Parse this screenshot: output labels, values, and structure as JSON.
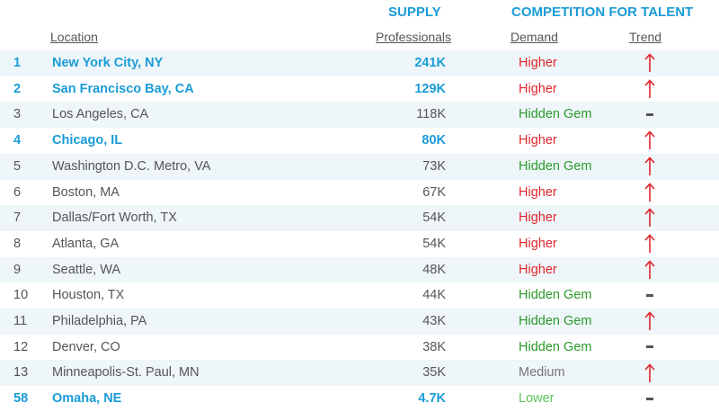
{
  "headers": {
    "supply": "SUPPLY",
    "competition": "COMPETITION FOR TALENT",
    "location": "Location",
    "professionals": "Professionals",
    "demand": "Demand",
    "trend": "Trend"
  },
  "colors": {
    "accent_blue": "#1a9bd7",
    "higher_red": "#e0262c",
    "hidden_gem_green": "#2a9a2a",
    "lower_green": "#5cc15c",
    "medium_gray": "#777777",
    "row_shade": "#eef6f9"
  },
  "rows": [
    {
      "rank": "1",
      "location": "New York City, NY",
      "professionals": "241K",
      "demand": "Higher",
      "trend": "up-arrow-icon",
      "highlight": true,
      "shaded": true
    },
    {
      "rank": "2",
      "location": "San Francisco Bay, CA",
      "professionals": "129K",
      "demand": "Higher",
      "trend": "up-arrow-icon",
      "highlight": true,
      "shaded": false
    },
    {
      "rank": "3",
      "location": "Los Angeles, CA",
      "professionals": "118K",
      "demand": "Hidden Gem",
      "trend": "dash-icon",
      "highlight": false,
      "shaded": true
    },
    {
      "rank": "4",
      "location": "Chicago, IL",
      "professionals": "80K",
      "demand": "Higher",
      "trend": "up-arrow-icon",
      "highlight": true,
      "shaded": false
    },
    {
      "rank": "5",
      "location": "Washington D.C. Metro, VA",
      "professionals": "73K",
      "demand": "Hidden Gem",
      "trend": "up-arrow-icon",
      "highlight": false,
      "shaded": true
    },
    {
      "rank": "6",
      "location": "Boston, MA",
      "professionals": "67K",
      "demand": "Higher",
      "trend": "up-arrow-icon",
      "highlight": false,
      "shaded": false
    },
    {
      "rank": "7",
      "location": "Dallas/Fort Worth, TX",
      "professionals": "54K",
      "demand": "Higher",
      "trend": "up-arrow-icon",
      "highlight": false,
      "shaded": true
    },
    {
      "rank": "8",
      "location": "Atlanta, GA",
      "professionals": "54K",
      "demand": "Higher",
      "trend": "up-arrow-icon",
      "highlight": false,
      "shaded": false
    },
    {
      "rank": "9",
      "location": "Seattle, WA",
      "professionals": "48K",
      "demand": "Higher",
      "trend": "up-arrow-icon",
      "highlight": false,
      "shaded": true
    },
    {
      "rank": "10",
      "location": "Houston, TX",
      "professionals": "44K",
      "demand": "Hidden Gem",
      "trend": "dash-icon",
      "highlight": false,
      "shaded": false
    },
    {
      "rank": "11",
      "location": "Philadelphia, PA",
      "professionals": "43K",
      "demand": "Hidden Gem",
      "trend": "up-arrow-icon",
      "highlight": false,
      "shaded": true
    },
    {
      "rank": "12",
      "location": "Denver, CO",
      "professionals": "38K",
      "demand": "Hidden Gem",
      "trend": "dash-icon",
      "highlight": false,
      "shaded": false
    },
    {
      "rank": "13",
      "location": "Minneapolis-St. Paul, MN",
      "professionals": "35K",
      "demand": "Medium",
      "trend": "up-arrow-icon",
      "highlight": false,
      "shaded": true
    },
    {
      "rank": "58",
      "location": "Omaha, NE",
      "professionals": "4.7K",
      "demand": "Lower",
      "trend": "dash-icon",
      "highlight": true,
      "shaded": false
    }
  ]
}
